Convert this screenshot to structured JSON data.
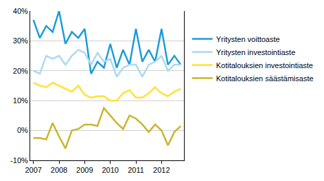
{
  "chart_data": {
    "type": "line",
    "categories": [
      "2007",
      null,
      null,
      null,
      "2008",
      null,
      null,
      null,
      "2009",
      null,
      null,
      null,
      "2010",
      null,
      null,
      null,
      "2011",
      null,
      null,
      null,
      "2012",
      null,
      null,
      null
    ],
    "series": [
      {
        "name": "Yritysten voittoaste",
        "color": "#1a9cd8",
        "values": [
          37,
          31,
          35,
          33,
          40,
          29,
          33,
          31,
          34,
          19,
          23,
          21,
          29,
          21,
          27,
          22,
          34,
          23,
          27,
          23,
          34,
          22,
          25,
          22
        ]
      },
      {
        "name": "Yritysten investointiaste",
        "color": "#a9daf2",
        "values": [
          20,
          19,
          25,
          24,
          25,
          22,
          25,
          27,
          26,
          22,
          26,
          23,
          24,
          18,
          21,
          22,
          22,
          18,
          22,
          23,
          25,
          20,
          22,
          22
        ]
      },
      {
        "name": "Kotitalouksien investointiaste",
        "color": "#ffe236",
        "values": [
          16,
          15,
          14.5,
          16,
          15,
          14,
          13,
          15,
          12,
          11,
          11.5,
          11.5,
          10,
          10,
          12.5,
          13.5,
          11,
          11,
          12.5,
          14.5,
          12.5,
          11.5,
          13,
          14
        ]
      },
      {
        "name": "Kotitalouksien säästämisaste",
        "color": "#c9b52a",
        "values": [
          -2.5,
          -2.5,
          -3,
          2.5,
          -2,
          -6,
          0,
          0.5,
          2,
          2,
          1.5,
          7.5,
          5,
          2.5,
          0.5,
          5,
          4,
          2,
          -0.5,
          2,
          0,
          -5,
          -0.5,
          1.5
        ]
      }
    ],
    "ylim": [
      -10,
      40
    ],
    "yticks": [
      {
        "value": -10,
        "label": "-10%"
      },
      {
        "value": 0,
        "label": "0%"
      },
      {
        "value": 10,
        "label": "10%"
      },
      {
        "value": 20,
        "label": "20%"
      },
      {
        "value": 30,
        "label": "30%"
      },
      {
        "value": 40,
        "label": "40%"
      }
    ],
    "grid": true,
    "legend": "right"
  }
}
